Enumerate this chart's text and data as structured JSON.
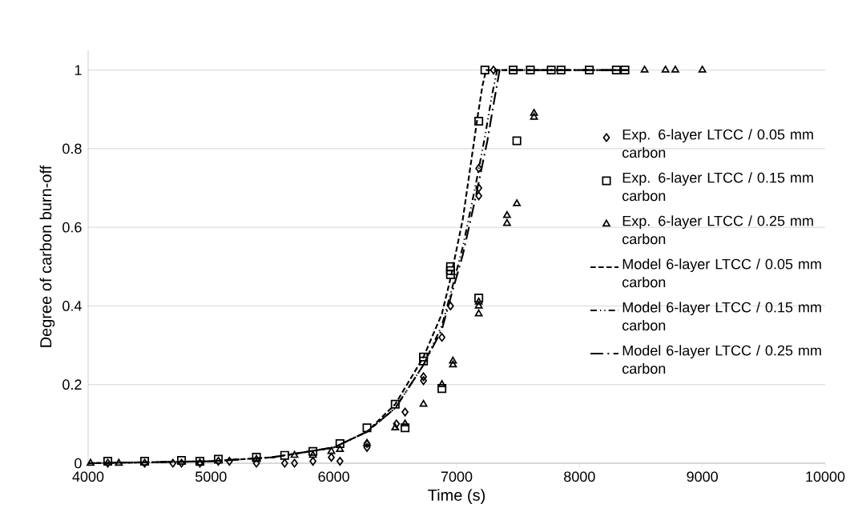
{
  "chart_data": {
    "type": "scatter",
    "xlabel": "Time (s)",
    "ylabel": "Degree of carbon burn-off",
    "xlim": [
      4000,
      10000
    ],
    "xticks": [
      4000,
      5000,
      6000,
      7000,
      8000,
      9000,
      10000
    ],
    "ylim": [
      0,
      1.05
    ],
    "yticks": [
      0,
      0.2,
      0.4,
      0.6,
      0.8,
      1
    ],
    "grid": "y",
    "legend": "right",
    "series": [
      {
        "name": "Exp. 6-layer LTCC / 0.05 mm carbon",
        "type": "scatter",
        "marker": "diamond",
        "color": "#000000",
        "x": [
          4160,
          4460,
          4690,
          4760,
          4910,
          5060,
          5150,
          5370,
          5600,
          5680,
          5830,
          5980,
          6050,
          6270,
          6270,
          6510,
          6580,
          6730,
          6730,
          6880,
          6950,
          7180,
          7180,
          7180,
          7300
        ],
        "values": [
          0,
          0,
          0,
          0,
          0,
          0.005,
          0.005,
          0,
          0,
          0,
          0.005,
          0.015,
          0.005,
          0.04,
          0.05,
          0.1,
          0.13,
          0.21,
          0.22,
          0.32,
          0.4,
          0.68,
          0.7,
          0.75,
          1
        ]
      },
      {
        "name": "Exp. 6-layer LTCC / 0.15 mm carbon",
        "type": "scatter",
        "marker": "square",
        "color": "#000000",
        "x": [
          4160,
          4460,
          4760,
          4910,
          5060,
          5370,
          5600,
          5830,
          6050,
          6270,
          6500,
          6580,
          6730,
          6730,
          6880,
          6950,
          6950,
          6950,
          7180,
          7180,
          7490,
          7230,
          7460,
          7600,
          7770,
          7850,
          8080,
          8300,
          8370
        ],
        "values": [
          0.005,
          0.005,
          0.007,
          0.005,
          0.01,
          0.015,
          0.02,
          0.03,
          0.05,
          0.09,
          0.15,
          0.09,
          0.26,
          0.27,
          0.19,
          0.48,
          0.49,
          0.5,
          0.87,
          0.42,
          0.82,
          1,
          1,
          1,
          1,
          1,
          1,
          1,
          1
        ]
      },
      {
        "name": "Exp. 6-layer LTCC / 0.25 mm carbon",
        "type": "scatter",
        "marker": "triangle",
        "color": "#000000",
        "x": [
          4020,
          4250,
          4910,
          5150,
          5370,
          5680,
          5830,
          5980,
          6050,
          6270,
          6500,
          6580,
          6730,
          6880,
          6970,
          6970,
          7180,
          7180,
          7180,
          7410,
          7410,
          7490,
          7630,
          7630,
          8530,
          8700,
          8780,
          9000
        ],
        "values": [
          0,
          0,
          0,
          null,
          0.01,
          0.02,
          0.02,
          0.03,
          0.035,
          0.05,
          0.09,
          0.1,
          0.15,
          0.2,
          0.25,
          0.26,
          0.38,
          0.4,
          0.41,
          0.61,
          0.63,
          0.66,
          0.88,
          0.89,
          1,
          1,
          1,
          1
        ]
      },
      {
        "name": "Model 6-layer LTCC / 0.05 mm carbon",
        "type": "line",
        "line_style": "dashed",
        "color": "#000000",
        "x": [
          4000,
          5000,
          5500,
          6000,
          6270,
          6500,
          6730,
          6880,
          6950,
          7050,
          7110,
          7170,
          7210,
          7240,
          8400
        ],
        "values": [
          0,
          0.005,
          0.015,
          0.04,
          0.08,
          0.15,
          0.27,
          0.38,
          0.47,
          0.62,
          0.75,
          0.88,
          0.96,
          1,
          1
        ]
      },
      {
        "name": "Model 6-layer LTCC / 0.15 mm carbon",
        "type": "line",
        "line_style": "dashdotdot",
        "color": "#000000",
        "x": [
          4000,
          5000,
          5500,
          6000,
          6270,
          6500,
          6730,
          6880,
          6950,
          7050,
          7150,
          7230,
          7290,
          7330,
          8400
        ],
        "values": [
          0,
          0.005,
          0.015,
          0.04,
          0.08,
          0.14,
          0.25,
          0.35,
          0.43,
          0.55,
          0.7,
          0.83,
          0.94,
          1,
          1
        ]
      },
      {
        "name": "Model 6-layer LTCC / 0.25 mm carbon",
        "type": "line",
        "line_style": "dashdot",
        "color": "#000000",
        "x": [
          4000,
          5000,
          5500,
          6000,
          6270,
          6500,
          6730,
          6880,
          6950,
          7050,
          7150,
          7250,
          7310,
          7350,
          8400
        ],
        "values": [
          0,
          0.005,
          0.015,
          0.04,
          0.08,
          0.14,
          0.25,
          0.34,
          0.42,
          0.53,
          0.67,
          0.82,
          0.93,
          1,
          1
        ]
      }
    ]
  }
}
